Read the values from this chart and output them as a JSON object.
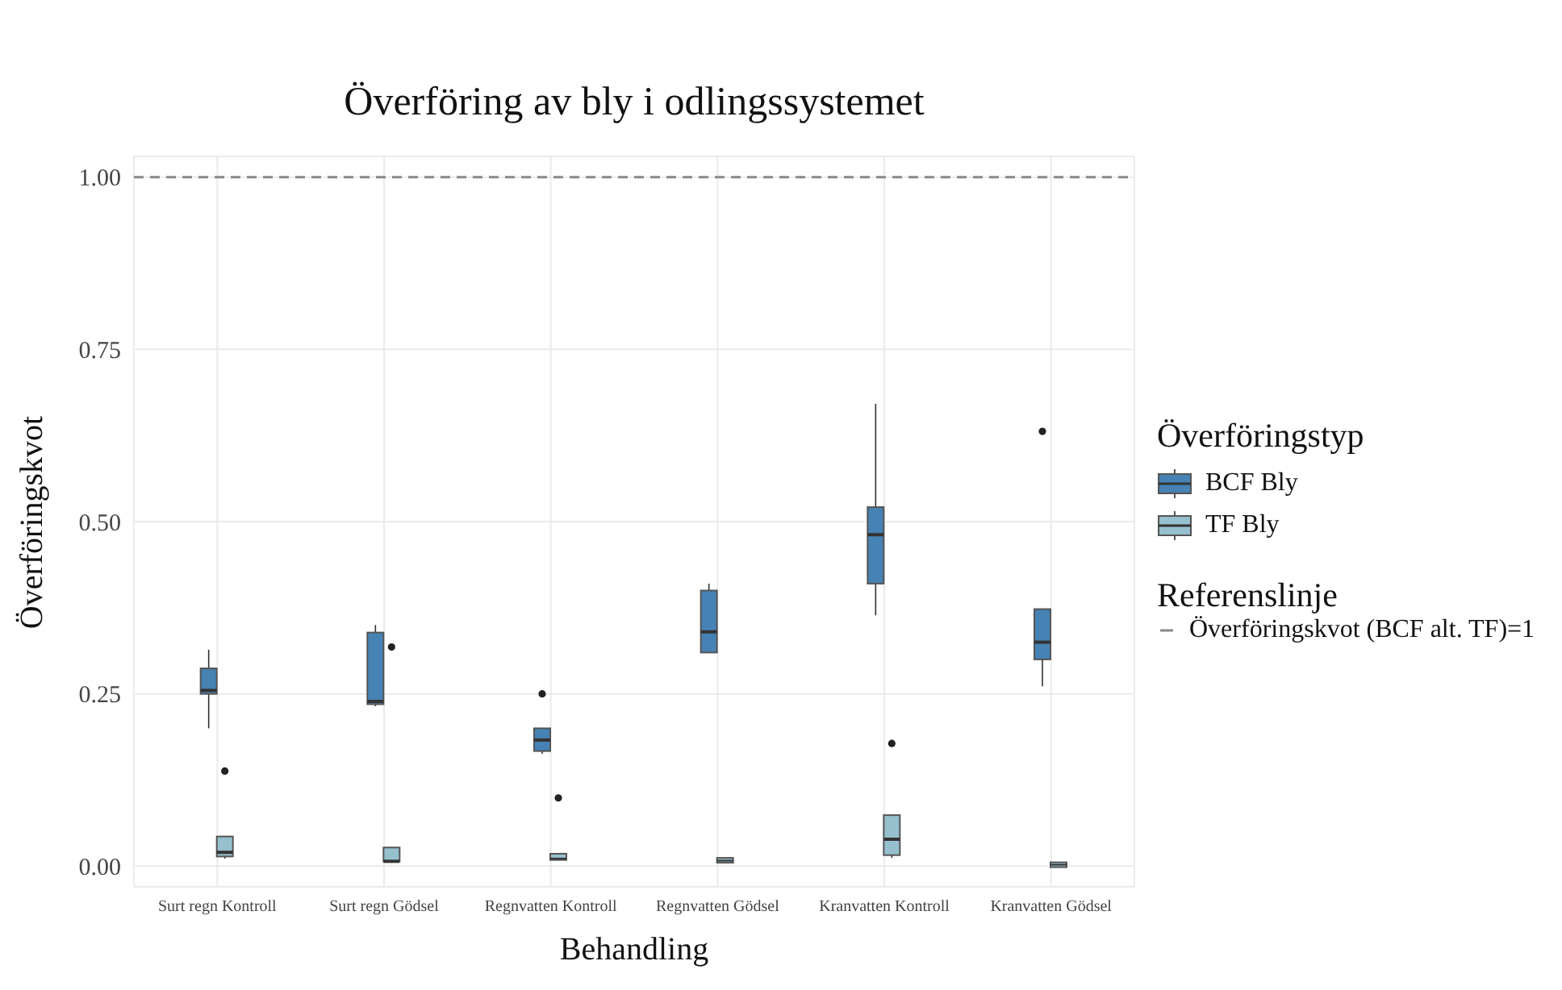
{
  "chart_data": {
    "type": "box",
    "title": "Överföring av bly i odlingssystemet",
    "xlabel": "Behandling",
    "ylabel": "Överföringskvot",
    "legend_title": "Överföringstyp",
    "categories": [
      "Surt regn Kontroll",
      "Surt regn Gödsel",
      "Regnvatten Kontroll",
      "Regnvatten Gödsel",
      "Kranvatten Kontroll",
      "Kranvatten Gödsel"
    ],
    "series": [
      {
        "name": "BCF Bly",
        "color": "#4682b4",
        "boxes": [
          {
            "low": 0.2,
            "q1": 0.25,
            "median": 0.255,
            "q3": 0.287,
            "high": 0.314
          },
          {
            "low": 0.232,
            "q1": 0.235,
            "median": 0.239,
            "q3": 0.339,
            "high": 0.35
          },
          {
            "low": 0.163,
            "q1": 0.167,
            "median": 0.183,
            "q3": 0.2,
            "high": 0.2,
            "outliers": [
              0.25
            ]
          },
          {
            "low": 0.31,
            "q1": 0.31,
            "median": 0.34,
            "q3": 0.4,
            "high": 0.41
          },
          {
            "low": 0.364,
            "q1": 0.41,
            "median": 0.481,
            "q3": 0.521,
            "high": 0.671
          },
          {
            "low": 0.261,
            "q1": 0.3,
            "median": 0.325,
            "q3": 0.373,
            "high": 0.373,
            "outliers": [
              0.631
            ]
          }
        ]
      },
      {
        "name": "TF Bly",
        "color": "#96c0ce",
        "boxes": [
          {
            "low": 0.011,
            "q1": 0.014,
            "median": 0.02,
            "q3": 0.043,
            "high": 0.043,
            "outliers": [
              0.138
            ]
          },
          {
            "low": 0.005,
            "q1": 0.007,
            "median": 0.007,
            "q3": 0.027,
            "high": 0.027,
            "outliers": [
              0.318
            ]
          },
          {
            "low": 0.009,
            "q1": 0.009,
            "median": 0.011,
            "q3": 0.018,
            "high": 0.018,
            "outliers": [
              0.099
            ]
          },
          {
            "low": 0.005,
            "q1": 0.005,
            "median": 0.008,
            "q3": 0.012,
            "high": 0.012
          },
          {
            "low": 0.012,
            "q1": 0.016,
            "median": 0.039,
            "q3": 0.074,
            "high": 0.074,
            "outliers": [
              0.178
            ]
          },
          {
            "low": 0.002,
            "q1": 0.002,
            "median": 0.002,
            "q3": 0.002,
            "high": 0.002
          }
        ]
      }
    ],
    "ylim": [
      -0.03,
      1.03
    ],
    "yticks": [
      {
        "value": 0,
        "label": "0.00"
      },
      {
        "value": 0.25,
        "label": "0.25"
      },
      {
        "value": 0.5,
        "label": "0.50"
      },
      {
        "value": 0.75,
        "label": "0.75"
      },
      {
        "value": 1,
        "label": "1.00"
      }
    ],
    "ref_lines": [
      {
        "axis": "y",
        "value": 1,
        "label": "Överföringskvot (BCF alt. TF)=1",
        "color": "#888888",
        "line_style": "dashed"
      }
    ],
    "annotations": [
      "Referenslinje"
    ],
    "grid": true,
    "legend": "right"
  }
}
